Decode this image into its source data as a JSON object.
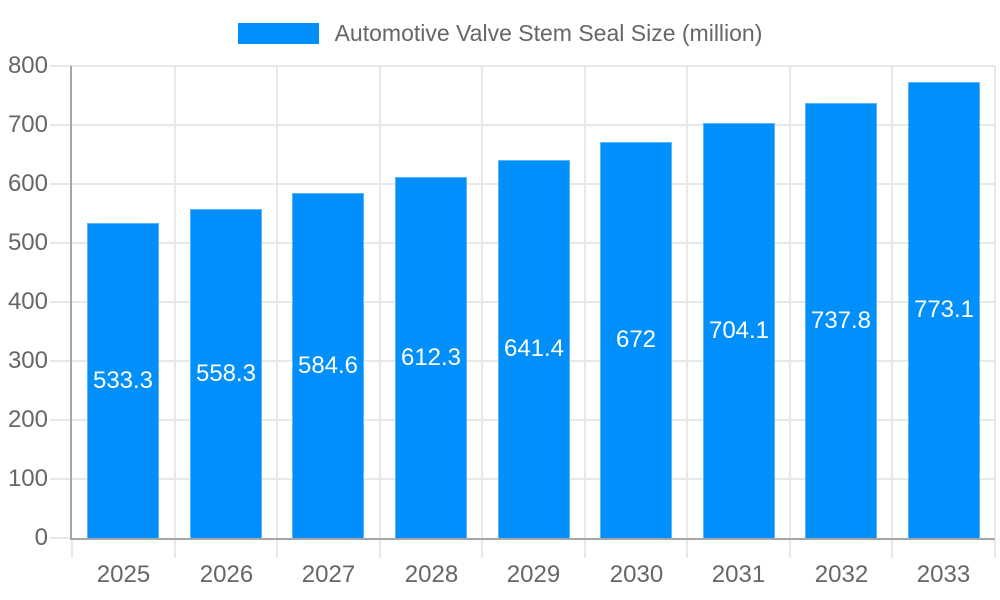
{
  "chart_data": {
    "type": "bar",
    "title": "Automotive Valve Stem Seal Size (million)",
    "categories": [
      "2025",
      "2026",
      "2027",
      "2028",
      "2029",
      "2030",
      "2031",
      "2032",
      "2033"
    ],
    "series": [
      {
        "name": "Automotive Valve Stem Seal Size (million)",
        "values": [
          533.3,
          558.3,
          584.6,
          612.3,
          641.4,
          672,
          704.1,
          737.8,
          773.1
        ],
        "value_labels": [
          "533.3",
          "558.3",
          "584.6",
          "612.3",
          "641.4",
          "672",
          "704.1",
          "737.8",
          "773.1"
        ]
      }
    ],
    "xlabel": "",
    "ylabel": "",
    "ylim": [
      0,
      800
    ],
    "ytick_step": 100,
    "yticks": [
      0,
      100,
      200,
      300,
      400,
      500,
      600,
      700,
      800
    ],
    "grid": true,
    "legend_position": "top",
    "value_label_position": "inside-center",
    "colors": {
      "bar": "#008FFB",
      "bar_value_label": "#ffffff",
      "axis_text": "#666666",
      "grid_line": "#e8e8e8",
      "axis_line": "#a6a6a6",
      "background": "#ffffff"
    }
  }
}
